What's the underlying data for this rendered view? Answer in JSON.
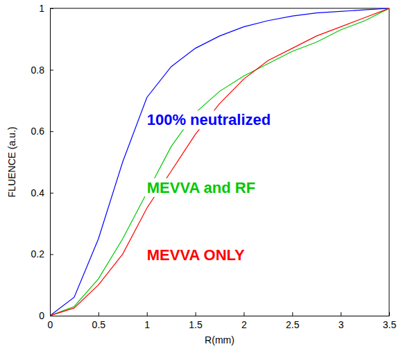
{
  "chart_data": {
    "type": "line",
    "x_label": "R(mm)",
    "y_label": "FLUENCE (a.u.)",
    "x": [
      0,
      0.25,
      0.5,
      0.75,
      1,
      1.25,
      1.5,
      1.75,
      2,
      2.25,
      2.5,
      2.75,
      3,
      3.25,
      3.5
    ],
    "series": [
      {
        "name": "100% neutralized",
        "color": "#0000ff",
        "values": [
          0,
          0.06,
          0.25,
          0.5,
          0.71,
          0.81,
          0.87,
          0.91,
          0.94,
          0.96,
          0.975,
          0.985,
          0.99,
          0.995,
          1
        ]
      },
      {
        "name": "MEVVA and RF",
        "color": "#00c800",
        "values": [
          0,
          0.03,
          0.12,
          0.25,
          0.4,
          0.55,
          0.66,
          0.73,
          0.78,
          0.82,
          0.86,
          0.89,
          0.93,
          0.96,
          1
        ]
      },
      {
        "name": "MEVVA ONLY",
        "color": "#ff0000",
        "values": [
          0,
          0.025,
          0.1,
          0.2,
          0.35,
          0.47,
          0.59,
          0.69,
          0.77,
          0.83,
          0.87,
          0.91,
          0.94,
          0.97,
          1
        ]
      }
    ],
    "xlim": [
      0,
      3.5
    ],
    "ylim": [
      0,
      1
    ],
    "xticks": [
      0,
      0.5,
      1,
      1.5,
      2,
      2.5,
      3,
      3.5
    ],
    "yticks": [
      0,
      0.2,
      0.4,
      0.6,
      0.8,
      1
    ],
    "grid": false
  }
}
